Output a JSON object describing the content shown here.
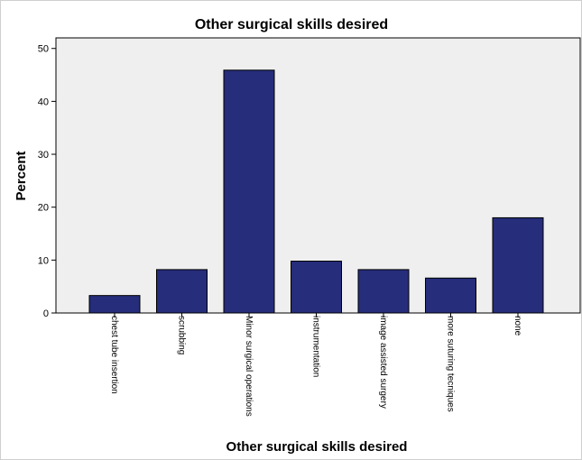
{
  "chart_data": {
    "type": "bar",
    "title": "Other surgical skills desired",
    "xlabel": "Other surgical skills desired",
    "ylabel": "Percent",
    "categories": [
      "chest tube insertion",
      "scrubbing",
      "Minor surgical operations",
      "instrumentation",
      "image assisted surgery",
      "more suturing tecniques",
      "none"
    ],
    "values": [
      3.3,
      8.2,
      45.9,
      9.8,
      8.2,
      6.6,
      18.0
    ],
    "ylim": [
      0,
      52
    ],
    "yticks": [
      "0",
      "10",
      "20",
      "30",
      "40",
      "50"
    ],
    "grid": false,
    "colors": {
      "bar": "#262d7a",
      "bar_stroke": "#000000",
      "plot_bg": "#efefef"
    }
  }
}
